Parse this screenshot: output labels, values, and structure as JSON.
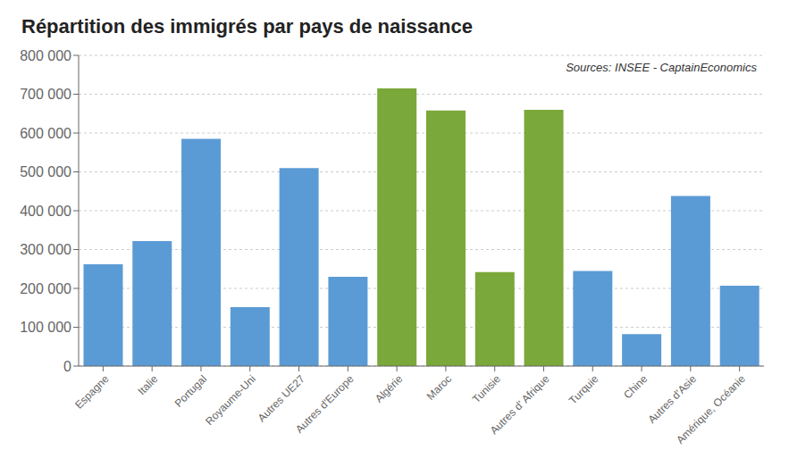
{
  "chart_data": {
    "type": "bar",
    "title": "Répartition des immigrés par pays de naissance",
    "annotations": [
      "Sources: INSEE - CaptainEconomics"
    ],
    "categories": [
      "Espagne",
      "Italie",
      "Portugal",
      "Royaume-Uni",
      "Autres UE27",
      "Autres d'Europe",
      "Algérie",
      "Maroc",
      "Tunisie",
      "Autres d' Afrique",
      "Turquie",
      "Chine",
      "Autres d'Asie",
      "Amérique, Océanie"
    ],
    "values": [
      262000,
      322000,
      585000,
      152000,
      510000,
      230000,
      715000,
      658000,
      242000,
      660000,
      245000,
      82000,
      438000,
      207000
    ],
    "colors": [
      "#5B9BD5",
      "#5B9BD5",
      "#5B9BD5",
      "#5B9BD5",
      "#5B9BD5",
      "#5B9BD5",
      "#7AA83A",
      "#7AA83A",
      "#7AA83A",
      "#7AA83A",
      "#5B9BD5",
      "#5B9BD5",
      "#5B9BD5",
      "#5B9BD5"
    ],
    "ylim": [
      0,
      800000
    ],
    "yticks": [
      0,
      {
        "value": 100000,
        "label": "100 000"
      },
      {
        "value": 200000,
        "label": "200 000"
      },
      {
        "value": 300000,
        "label": "300 000"
      },
      {
        "value": 400000,
        "label": "400 000"
      },
      {
        "value": 500000,
        "label": "500 000"
      },
      {
        "value": 600000,
        "label": "600 000"
      },
      {
        "value": 700000,
        "label": "700 000"
      },
      {
        "value": 800000,
        "label": "800 000"
      }
    ],
    "grid": true
  }
}
